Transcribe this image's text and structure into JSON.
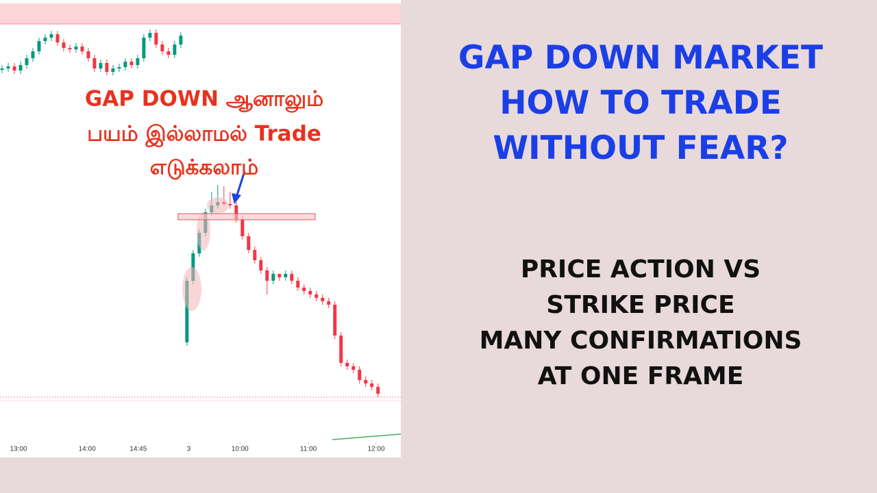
{
  "chart_data": {
    "type": "candlestick",
    "annotation": [
      "GAP DOWN ஆனாலும்",
      "பயம் இல்லாமல் Trade",
      "எடுக்கலாம்"
    ],
    "xlim": [
      0,
      64.7
    ],
    "ylim": [
      60,
      700
    ],
    "xticks": [
      {
        "value": 2.67,
        "label": "13:00"
      },
      {
        "value": 13.8,
        "label": "14:00"
      },
      {
        "value": 22.1,
        "label": "14:45"
      },
      {
        "value": 30.3,
        "label": "3"
      },
      {
        "value": 38.6,
        "label": "10:00"
      },
      {
        "value": 49.7,
        "label": "11:00"
      },
      {
        "value": 60.7,
        "label": "12:00"
      }
    ],
    "up_color": "#089981",
    "down_color": "#f23645",
    "open": [
      598,
      600,
      603,
      597,
      605,
      615,
      625,
      640,
      645,
      650,
      638,
      630,
      628,
      632,
      625,
      615,
      600,
      608,
      595,
      600,
      602,
      610,
      605,
      615,
      645,
      652,
      635,
      625,
      620,
      635,
      200,
      290,
      330,
      360,
      390,
      400,
      405,
      402,
      400,
      380,
      355,
      335,
      320,
      305,
      290,
      300,
      295,
      300,
      290,
      280,
      275,
      270,
      265,
      260,
      255,
      210,
      170,
      165,
      160,
      145,
      140,
      135
    ],
    "high": [
      605,
      608,
      608,
      610,
      620,
      630,
      645,
      650,
      655,
      655,
      643,
      635,
      637,
      637,
      630,
      620,
      613,
      613,
      605,
      607,
      615,
      615,
      620,
      650,
      657,
      657,
      640,
      630,
      640,
      653,
      295,
      335,
      365,
      395,
      420,
      430,
      428,
      420,
      405,
      385,
      360,
      340,
      325,
      310,
      305,
      300,
      305,
      305,
      295,
      285,
      280,
      275,
      270,
      265,
      260,
      215,
      175,
      170,
      165,
      150,
      145,
      140
    ],
    "low": [
      593,
      595,
      592,
      592,
      600,
      610,
      620,
      635,
      640,
      633,
      625,
      623,
      623,
      620,
      610,
      595,
      595,
      590,
      590,
      595,
      597,
      600,
      600,
      610,
      640,
      630,
      620,
      615,
      615,
      630,
      195,
      285,
      325,
      355,
      385,
      395,
      400,
      395,
      375,
      350,
      330,
      315,
      300,
      270,
      285,
      290,
      290,
      285,
      275,
      270,
      265,
      260,
      255,
      250,
      205,
      165,
      160,
      155,
      140,
      135,
      130,
      120
    ],
    "close": [
      600,
      603,
      597,
      605,
      615,
      625,
      640,
      645,
      650,
      638,
      630,
      628,
      632,
      625,
      615,
      600,
      608,
      595,
      600,
      602,
      610,
      605,
      615,
      645,
      652,
      635,
      625,
      620,
      635,
      648,
      290,
      330,
      360,
      390,
      400,
      405,
      402,
      400,
      380,
      355,
      335,
      320,
      305,
      290,
      300,
      295,
      300,
      290,
      280,
      275,
      270,
      265,
      260,
      255,
      210,
      170,
      165,
      160,
      145,
      140,
      135,
      125
    ]
  },
  "title": [
    "GAP DOWN MARKET",
    "HOW TO TRADE",
    "WITHOUT FEAR?"
  ],
  "subtitle": [
    "PRICE ACTION VS",
    "STRIKE PRICE",
    "MANY CONFIRMATIONS",
    "AT ONE FRAME"
  ]
}
